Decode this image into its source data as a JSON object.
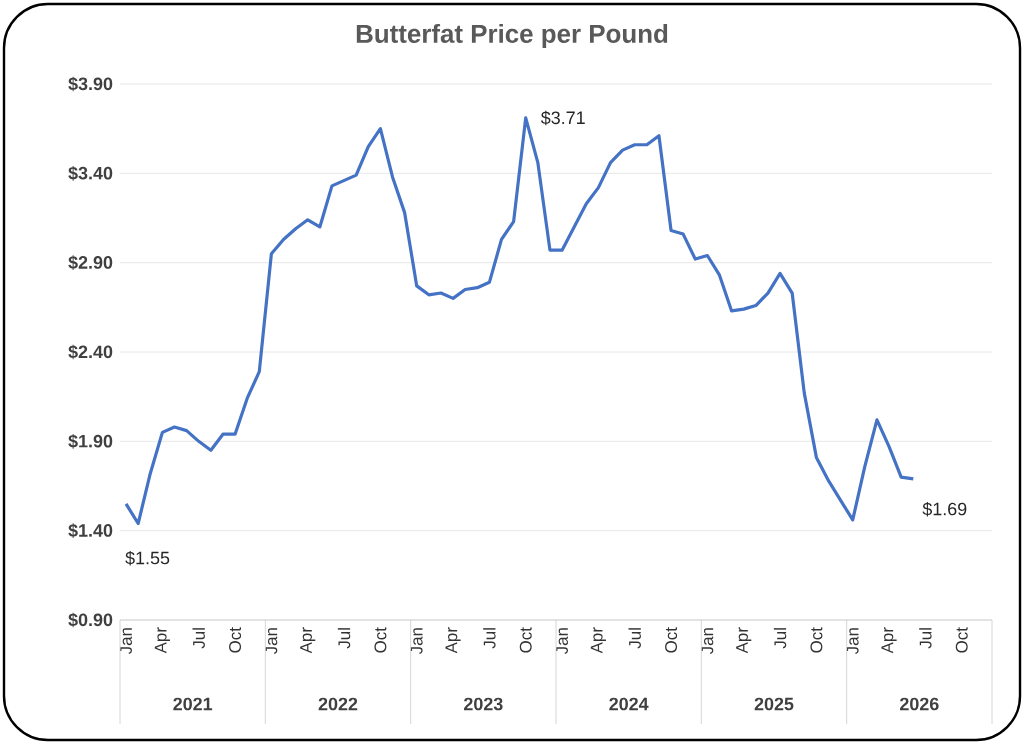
{
  "chart_data": {
    "type": "line",
    "title": "Butterfat Price per Pound",
    "categories": [
      "Jan",
      null,
      null,
      "Apr",
      null,
      null,
      "Jul",
      null,
      null,
      "Oct",
      null,
      null,
      "Jan",
      null,
      null,
      "Apr",
      null,
      null,
      "Jul",
      null,
      null,
      "Oct",
      null,
      null,
      "Jan",
      null,
      null,
      "Apr",
      null,
      null,
      "Jul",
      null,
      null,
      "Oct",
      null,
      null,
      "Jan",
      null,
      null,
      "Apr",
      null,
      null,
      "Jul",
      null,
      null,
      "Oct",
      null,
      null,
      "Jan",
      null,
      null,
      "Apr",
      null,
      null,
      "Jul",
      null,
      null,
      "Oct",
      null,
      null,
      "Jan",
      null,
      null,
      "Apr",
      null,
      null,
      "Jul",
      null,
      null,
      "Oct",
      null,
      null
    ],
    "series": [
      {
        "color": "#4472c4",
        "values": [
          1.55,
          1.44,
          1.72,
          1.95,
          1.98,
          1.96,
          1.9,
          1.85,
          1.94,
          1.94,
          2.14,
          2.29,
          2.95,
          3.03,
          3.09,
          3.14,
          3.1,
          3.33,
          3.36,
          3.39,
          3.55,
          3.65,
          3.38,
          3.18,
          2.77,
          2.72,
          2.73,
          2.7,
          2.75,
          2.76,
          2.79,
          3.03,
          3.13,
          3.71,
          3.46,
          2.97,
          2.97,
          3.1,
          3.23,
          3.32,
          3.46,
          3.53,
          3.56,
          3.56,
          3.61,
          3.08,
          3.06,
          2.92,
          2.94,
          2.83,
          2.63,
          2.64,
          2.66,
          2.73,
          2.84,
          2.73,
          2.17,
          1.81,
          1.68,
          1.57,
          1.46,
          1.76,
          2.02,
          1.87,
          1.7,
          1.69,
          null,
          null,
          null,
          null,
          null,
          null
        ],
        "value_labels": [
          "$1.55",
          null,
          null,
          null,
          null,
          null,
          null,
          null,
          null,
          null,
          null,
          null,
          null,
          null,
          null,
          null,
          null,
          null,
          null,
          null,
          null,
          null,
          null,
          null,
          null,
          null,
          null,
          null,
          null,
          null,
          null,
          null,
          null,
          "$3.71",
          null,
          null,
          null,
          null,
          null,
          null,
          null,
          null,
          null,
          null,
          null,
          null,
          null,
          null,
          null,
          null,
          null,
          null,
          null,
          null,
          null,
          null,
          null,
          null,
          null,
          null,
          null,
          null,
          null,
          null,
          null,
          "$1.69",
          null,
          null,
          null,
          null,
          null,
          null
        ]
      }
    ],
    "annotations": [
      "2021",
      "2022",
      "2023",
      "2024",
      "2025",
      "2026"
    ],
    "ylim": [
      0.9,
      3.9
    ],
    "yticks": [
      {
        "value": 0.9,
        "label": "$0.90"
      },
      {
        "value": 1.4,
        "label": "$1.40"
      },
      {
        "value": 1.9,
        "label": "$1.90"
      },
      {
        "value": 2.4,
        "label": "$2.40"
      },
      {
        "value": 2.9,
        "label": "$2.90"
      },
      {
        "value": 3.4,
        "label": "$3.40"
      },
      {
        "value": 3.9,
        "label": "$3.90"
      }
    ],
    "grid": "y"
  }
}
